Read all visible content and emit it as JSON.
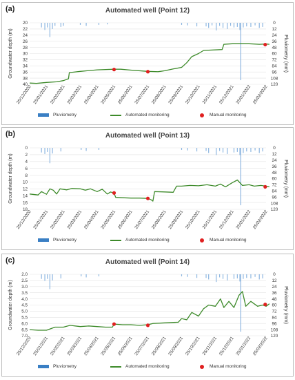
{
  "chart_data": [
    {
      "type": "line",
      "panel_label": "(a)",
      "title": "Automated well (Point 12)",
      "ylabel": "Groundwater depth (m)",
      "y2label": "Pluviometry (mm)",
      "yticks": [
        "20",
        "22",
        "24",
        "26",
        "28",
        "30",
        "32",
        "34",
        "36",
        "38",
        "40"
      ],
      "ylim": [
        20,
        40
      ],
      "y_inverted": true,
      "y2ticks": [
        "0",
        "12",
        "24",
        "36",
        "48",
        "60",
        "72",
        "84",
        "96",
        "108",
        "120"
      ],
      "y2lim": [
        0,
        120
      ],
      "xticks": [
        "25/12/2020",
        "25/01/2021",
        "25/02/2021",
        "25/03/2021",
        "25/04/2021",
        "25/05/2021",
        "25/06/2021",
        "25/07/2021",
        "25/08/2021",
        "25/09/2021",
        "25/10/2021",
        "25/11/2021",
        "25/12/2021",
        "25/01/2022",
        "25/02/2022"
      ],
      "legend": [
        "Pluviometry",
        "Automated monitoring",
        "Manual monitoring"
      ],
      "automated": [
        [
          0,
          39.6
        ],
        [
          0.4,
          39.7
        ],
        [
          1,
          39.4
        ],
        [
          1.6,
          39.2
        ],
        [
          2,
          38.8
        ],
        [
          2.3,
          38.2
        ],
        [
          2.35,
          36.2
        ],
        [
          3,
          35.8
        ],
        [
          4,
          35.3
        ],
        [
          5,
          35.1
        ],
        [
          5.4,
          35.1
        ],
        [
          6,
          35.4
        ],
        [
          7,
          35.8
        ],
        [
          7.6,
          35.9
        ],
        [
          8,
          35.6
        ],
        [
          8.5,
          35.0
        ],
        [
          9,
          34.5
        ],
        [
          9.3,
          33.0
        ],
        [
          9.6,
          31.0
        ],
        [
          10,
          30.0
        ],
        [
          10.3,
          29.0
        ],
        [
          11,
          28.8
        ],
        [
          11.4,
          28.7
        ],
        [
          11.5,
          27.0
        ],
        [
          12,
          26.8
        ],
        [
          13,
          26.8
        ],
        [
          13.6,
          27.0
        ],
        [
          14,
          26.9
        ],
        [
          14.2,
          27.0
        ]
      ],
      "manual": [
        [
          5,
          35.2
        ],
        [
          7,
          35.9
        ],
        [
          13.95,
          27.1
        ]
      ],
      "pluviometry": [
        [
          0.7,
          9
        ],
        [
          0.9,
          14
        ],
        [
          1.05,
          9
        ],
        [
          1.2,
          28
        ],
        [
          1.35,
          12
        ],
        [
          1.5,
          6
        ],
        [
          1.85,
          8
        ],
        [
          2.0,
          6
        ],
        [
          3.0,
          4
        ],
        [
          3.35,
          6
        ],
        [
          4.1,
          4
        ],
        [
          4.6,
          3
        ],
        [
          9.0,
          4
        ],
        [
          9.35,
          5
        ],
        [
          9.9,
          7
        ],
        [
          10.45,
          7
        ],
        [
          10.6,
          10
        ],
        [
          10.8,
          5
        ],
        [
          11.05,
          15
        ],
        [
          11.25,
          6
        ],
        [
          11.45,
          10
        ],
        [
          11.7,
          12
        ],
        [
          11.9,
          6
        ],
        [
          12.1,
          9
        ],
        [
          12.3,
          8
        ],
        [
          12.45,
          14
        ],
        [
          12.5,
          112
        ],
        [
          12.65,
          9
        ],
        [
          12.85,
          7
        ],
        [
          13.1,
          8
        ],
        [
          13.35,
          5
        ],
        [
          13.6,
          10
        ],
        [
          13.8,
          8
        ]
      ]
    },
    {
      "type": "line",
      "panel_label": "(b)",
      "title": "Automated well (Point 13)",
      "ylabel": "Groundwater depth (m)",
      "y2label": "Pluviometry (mm)",
      "yticks": [
        "0",
        "2",
        "4",
        "6",
        "8",
        "10",
        "12",
        "14",
        "16",
        "18"
      ],
      "ylim": [
        0,
        18
      ],
      "y_inverted": true,
      "y2ticks": [
        "0",
        "12",
        "24",
        "36",
        "48",
        "60",
        "72",
        "84",
        "96",
        "108",
        "120"
      ],
      "y2lim": [
        0,
        120
      ],
      "xticks": [
        "25/12/2020",
        "25/01/2021",
        "25/02/2021",
        "25/03/2021",
        "25/04/2021",
        "25/05/2021",
        "25/06/2021",
        "25/07/2021",
        "25/08/2021",
        "25/09/2021",
        "25/10/2021",
        "25/11/2021",
        "25/12/2021",
        "25/01/2022",
        "25/02/2022"
      ],
      "legend": [
        "Pluviometry",
        "Automated monitoring",
        "Manual monitoring"
      ],
      "automated": [
        [
          0,
          13.5
        ],
        [
          0.5,
          13.8
        ],
        [
          0.7,
          12.8
        ],
        [
          1,
          13.6
        ],
        [
          1.2,
          12.0
        ],
        [
          1.4,
          12.4
        ],
        [
          1.6,
          13.5
        ],
        [
          1.8,
          12.0
        ],
        [
          2.2,
          12.3
        ],
        [
          2.5,
          11.9
        ],
        [
          3,
          12.0
        ],
        [
          3.3,
          12.4
        ],
        [
          3.6,
          12.0
        ],
        [
          4,
          12.8
        ],
        [
          4.3,
          12.1
        ],
        [
          4.6,
          13.5
        ],
        [
          4.8,
          12.9
        ],
        [
          5,
          13.3
        ],
        [
          5.1,
          14.5
        ],
        [
          5.5,
          14.6
        ],
        [
          6,
          14.7
        ],
        [
          6.5,
          14.7
        ],
        [
          7,
          14.8
        ],
        [
          7.2,
          15.2
        ],
        [
          7.3,
          15.6
        ],
        [
          7.4,
          12.8
        ],
        [
          8,
          12.9
        ],
        [
          8.5,
          13.0
        ],
        [
          8.7,
          11.2
        ],
        [
          9,
          11.2
        ],
        [
          9.5,
          11.0
        ],
        [
          10,
          11.1
        ],
        [
          10.5,
          10.8
        ],
        [
          11,
          11.2
        ],
        [
          11.3,
          10.6
        ],
        [
          11.6,
          11.4
        ],
        [
          12,
          10.2
        ],
        [
          12.3,
          9.4
        ],
        [
          12.6,
          11.0
        ],
        [
          13,
          10.8
        ],
        [
          13.3,
          11.2
        ],
        [
          13.7,
          11.0
        ],
        [
          14,
          11.2
        ],
        [
          14.2,
          11.4
        ]
      ],
      "manual": [
        [
          5,
          13.2
        ],
        [
          7,
          14.8
        ],
        [
          13.95,
          11.4
        ]
      ],
      "pluviometry": [
        [
          0.7,
          9
        ],
        [
          0.9,
          12
        ],
        [
          1.05,
          8
        ],
        [
          1.2,
          30
        ],
        [
          1.35,
          11
        ],
        [
          1.85,
          7
        ],
        [
          3.05,
          4
        ],
        [
          3.35,
          6
        ],
        [
          4.1,
          4
        ],
        [
          9.0,
          4
        ],
        [
          9.35,
          5
        ],
        [
          9.9,
          7
        ],
        [
          10.45,
          6
        ],
        [
          10.6,
          10
        ],
        [
          11.05,
          14
        ],
        [
          11.25,
          6
        ],
        [
          11.45,
          9
        ],
        [
          11.7,
          12
        ],
        [
          12.1,
          9
        ],
        [
          12.3,
          8
        ],
        [
          12.45,
          14
        ],
        [
          12.5,
          112
        ],
        [
          12.65,
          10
        ],
        [
          12.85,
          7
        ],
        [
          13.1,
          8
        ],
        [
          13.35,
          5
        ],
        [
          13.6,
          10
        ],
        [
          13.8,
          7
        ]
      ]
    },
    {
      "type": "line",
      "panel_label": "(c)",
      "title": "Automated well (Point 14)",
      "ylabel": "Groundwater depth (m)",
      "y2label": "Pluviometry (mm)",
      "yticks": [
        "2.0",
        "2.5",
        "3.0",
        "3.5",
        "4.0",
        "4.5",
        "5.0",
        "5.5",
        "6.0",
        "6.5",
        "7.0"
      ],
      "ylim": [
        2.0,
        7.0
      ],
      "y_inverted": true,
      "y2ticks": [
        "0",
        "12",
        "24",
        "36",
        "48",
        "60",
        "72",
        "84",
        "96",
        "108",
        "120"
      ],
      "y2lim": [
        0,
        120
      ],
      "xticks": [
        "25/12/2020",
        "25/01/2021",
        "25/02/2021",
        "25/03/2021",
        "25/04/2021",
        "25/05/2021",
        "25/06/2021",
        "25/07/2021",
        "25/08/2021",
        "25/09/2021",
        "25/10/2021",
        "25/11/2021",
        "25/12/2021",
        "25/01/2022",
        "25/02/2022"
      ],
      "legend": [
        "Pluviometry",
        "Automated monitoring",
        "Manual monitoring"
      ],
      "automated": [
        [
          0,
          6.5
        ],
        [
          0.5,
          6.55
        ],
        [
          1,
          6.55
        ],
        [
          1.5,
          6.3
        ],
        [
          2,
          6.3
        ],
        [
          2.4,
          6.15
        ],
        [
          2.7,
          6.2
        ],
        [
          3,
          6.25
        ],
        [
          3.5,
          6.2
        ],
        [
          4,
          6.25
        ],
        [
          4.5,
          6.3
        ],
        [
          4.9,
          6.3
        ],
        [
          5,
          6.05
        ],
        [
          5.5,
          6.1
        ],
        [
          6,
          6.1
        ],
        [
          6.5,
          6.15
        ],
        [
          7,
          6.1
        ],
        [
          7.3,
          6.0
        ],
        [
          8,
          5.95
        ],
        [
          8.8,
          5.9
        ],
        [
          9,
          5.6
        ],
        [
          9.3,
          5.7
        ],
        [
          9.6,
          5.1
        ],
        [
          10,
          5.4
        ],
        [
          10.3,
          4.8
        ],
        [
          10.6,
          4.5
        ],
        [
          11,
          4.6
        ],
        [
          11.3,
          4.0
        ],
        [
          11.5,
          4.7
        ],
        [
          11.8,
          4.2
        ],
        [
          12.1,
          4.7
        ],
        [
          12.4,
          3.7
        ],
        [
          12.6,
          3.4
        ],
        [
          12.8,
          4.6
        ],
        [
          13.1,
          4.2
        ],
        [
          13.5,
          4.6
        ],
        [
          13.8,
          4.5
        ],
        [
          14.0,
          4.6
        ],
        [
          14.2,
          4.4
        ]
      ],
      "manual": [
        [
          5,
          6.05
        ],
        [
          7,
          6.15
        ],
        [
          13.95,
          4.45
        ]
      ],
      "pluviometry": [
        [
          0.7,
          9
        ],
        [
          0.9,
          13
        ],
        [
          1.05,
          9
        ],
        [
          1.2,
          29
        ],
        [
          1.35,
          12
        ],
        [
          1.85,
          8
        ],
        [
          3.05,
          4
        ],
        [
          3.35,
          6
        ],
        [
          4.1,
          4
        ],
        [
          9.0,
          4
        ],
        [
          9.35,
          5
        ],
        [
          9.9,
          7
        ],
        [
          10.45,
          7
        ],
        [
          10.6,
          10
        ],
        [
          11.05,
          15
        ],
        [
          11.25,
          6
        ],
        [
          11.45,
          9
        ],
        [
          11.7,
          12
        ],
        [
          12.1,
          9
        ],
        [
          12.3,
          8
        ],
        [
          12.45,
          14
        ],
        [
          12.5,
          112
        ],
        [
          12.65,
          9
        ],
        [
          12.85,
          7
        ],
        [
          13.1,
          8
        ],
        [
          13.35,
          5
        ],
        [
          13.6,
          10
        ],
        [
          13.8,
          8
        ]
      ]
    }
  ],
  "colors": {
    "pluviometry": "#8db6e0",
    "automated": "#3d8a2a",
    "manual": "#e02020",
    "grid": "#e3e3e3"
  }
}
